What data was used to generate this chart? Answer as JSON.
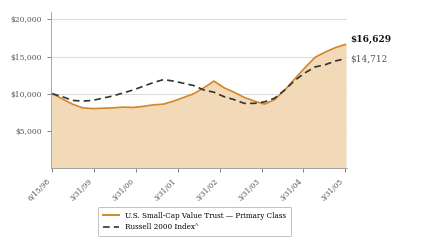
{
  "x_labels": [
    "6/15/98",
    "3/31/99",
    "3/31/00",
    "3/31/01",
    "3/31/02",
    "3/31/03",
    "3/31/04",
    "3/31/05"
  ],
  "trust_interp": [
    10000,
    9300,
    8600,
    8100,
    8000,
    8050,
    8100,
    8200,
    8150,
    8300,
    8500,
    8600,
    9000,
    9500,
    10000,
    10800,
    11700,
    10800,
    10200,
    9500,
    9000,
    8600,
    9200,
    10500,
    12000,
    13500,
    14900,
    15600,
    16200,
    16629
  ],
  "russell_interp": [
    10000,
    9600,
    9100,
    9000,
    9100,
    9400,
    9700,
    10100,
    10500,
    11000,
    11500,
    11900,
    11700,
    11400,
    11100,
    10500,
    10200,
    9600,
    9200,
    8700,
    8700,
    8900,
    9400,
    10500,
    11800,
    12800,
    13600,
    13900,
    14400,
    14712
  ],
  "trust_label": "U.S. Small-Cap Value Trust — Primary Class",
  "russell_label": "Russell 2000 Indexᴬ",
  "trust_end_label": "$16,629",
  "russell_end_label": "$14,712",
  "fill_color": "#f2d9b8",
  "trust_line_color": "#d4872a",
  "russell_line_color": "#333333",
  "background_color": "#ffffff",
  "yticks": [
    5000,
    10000,
    15000,
    20000
  ],
  "ylim": [
    0,
    21000
  ],
  "xlim_left": -0.15,
  "xlim_right": 29.15
}
